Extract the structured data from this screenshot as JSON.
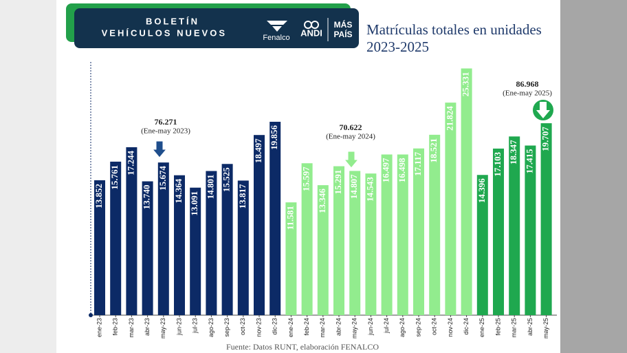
{
  "header": {
    "bulletin_line1": "BOLETÍN",
    "bulletin_line2": "VEHÍCULOS NUEVOS",
    "logos": [
      "Fenalco",
      "ANDI",
      "MÁS",
      "PAÍS"
    ]
  },
  "chart_data": {
    "type": "bar",
    "title": "Matrículas totales en unidades",
    "subtitle": "2023-2025",
    "categories": [
      "ene-23",
      "feb-23",
      "mar-23",
      "abr-23",
      "may-23",
      "jun-23",
      "jul-23",
      "ago-23",
      "sep-23",
      "oct-23",
      "nov-23",
      "dic-23",
      "ene-24",
      "feb-24",
      "mar-24",
      "abr-24",
      "may-24",
      "jun-24",
      "jul-24",
      "ago-24",
      "sep-24",
      "oct-24",
      "nov-24",
      "dic-24",
      "ene-25",
      "feb-25",
      "mar-25",
      "abr-25",
      "may-25"
    ],
    "values": [
      13852,
      15761,
      17244,
      13740,
      15674,
      14364,
      13091,
      14801,
      15525,
      13817,
      18497,
      19856,
      11581,
      15597,
      13346,
      15291,
      14807,
      14543,
      16497,
      16498,
      17117,
      18521,
      21824,
      25331,
      14396,
      17103,
      18347,
      17415,
      19707
    ],
    "value_labels": [
      "13.852",
      "15.761",
      "17.244",
      "13.740",
      "15.674",
      "14.364",
      "13.091",
      "14.801",
      "15.525",
      "13.817",
      "18.497",
      "19.856",
      "11.581",
      "15.597",
      "13.346",
      "15.291",
      "14.807",
      "14.543",
      "16.497",
      "16.498",
      "17.117",
      "18.521",
      "21.824",
      "25.331",
      "14.396",
      "17.103",
      "18.347",
      "17.415",
      "19.707"
    ],
    "colors": [
      "#0c2a66",
      "#0c2a66",
      "#0c2a66",
      "#0c2a66",
      "#0c2a66",
      "#0c2a66",
      "#0c2a66",
      "#0c2a66",
      "#0c2a66",
      "#0c2a66",
      "#0c2a66",
      "#0c2a66",
      "#92ec8e",
      "#92ec8e",
      "#92ec8e",
      "#92ec8e",
      "#92ec8e",
      "#92ec8e",
      "#92ec8e",
      "#92ec8e",
      "#92ec8e",
      "#92ec8e",
      "#92ec8e",
      "#92ec8e",
      "#1fa84f",
      "#1fa84f",
      "#1fa84f",
      "#1fa84f",
      "#1fa84f"
    ],
    "ylim": [
      0,
      26000
    ],
    "annotations": [
      {
        "total": "76.271",
        "period": "(Ene-may 2023)"
      },
      {
        "total": "70.622",
        "period": "(Ene-may 2024)"
      },
      {
        "total": "86.968",
        "period": "(Ene-may 2025)"
      }
    ],
    "source": "Fuente: Datos RUNT, elaboración FENALCO"
  }
}
